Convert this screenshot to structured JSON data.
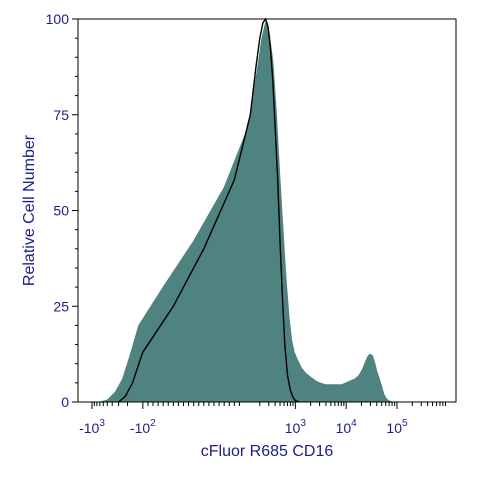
{
  "chart_data": {
    "type": "area",
    "xlabel": "cFluor R685 CD16",
    "ylabel": "Relative Cell Number",
    "ylim": [
      0,
      100
    ],
    "y_ticks": [
      0,
      25,
      50,
      75,
      100
    ],
    "x_scale": "biexponential (logicle)",
    "x_ticks": [
      {
        "base": "-10",
        "exp": "3",
        "value": -1000
      },
      {
        "base": "-10",
        "exp": "2",
        "value": -100
      },
      {
        "base": "10",
        "exp": "3",
        "value": 1000
      },
      {
        "base": "10",
        "exp": "4",
        "value": 10000
      },
      {
        "base": "10",
        "exp": "5",
        "value": 100000
      }
    ],
    "series": [
      {
        "style": "filled",
        "color": "#4f8380",
        "x": [
          -700,
          -500,
          -350,
          -250,
          -180,
          -120,
          -60,
          0,
          60,
          120,
          180,
          220,
          260,
          300,
          360,
          420,
          480,
          560,
          650,
          750,
          850,
          950,
          1100,
          1300,
          1600,
          2000,
          2500,
          3000,
          4000,
          5000,
          6000,
          7000,
          8000,
          10000,
          12000,
          15000,
          18000,
          21000,
          24000,
          27000,
          30000,
          33000,
          36000,
          40000,
          45000,
          50000,
          55000,
          62000,
          70000,
          80000
        ],
        "y": [
          0,
          0.5,
          2.5,
          6,
          12,
          20,
          30,
          42,
          56,
          72,
          87,
          95,
          99,
          97,
          89,
          76,
          62,
          47,
          33,
          22,
          16,
          13,
          11,
          9,
          7.5,
          6.5,
          5.5,
          5,
          4.5,
          4.5,
          4.5,
          4.5,
          4.5,
          5,
          5.5,
          6,
          7,
          8.5,
          10.5,
          12,
          12.5,
          12,
          10.5,
          8,
          6,
          4,
          2,
          0.8,
          0.3,
          0
        ]
      },
      {
        "style": "line",
        "color": "#000000",
        "x": [
          -300,
          -220,
          -160,
          -100,
          -40,
          20,
          80,
          130,
          170,
          200,
          230,
          260,
          290,
          320,
          360,
          400,
          450,
          500,
          560,
          620,
          700,
          800,
          900,
          1000,
          1200
        ],
        "y": [
          0,
          1.5,
          5,
          13,
          25,
          40,
          58,
          75,
          88,
          95,
          99,
          100,
          98,
          93,
          84,
          72,
          58,
          42,
          27,
          15,
          7,
          3,
          1.2,
          0.4,
          0
        ]
      }
    ]
  }
}
